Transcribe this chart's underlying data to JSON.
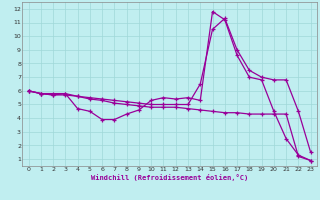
{
  "xlabel": "Windchill (Refroidissement éolien,°C)",
  "xlim": [
    -0.5,
    23.5
  ],
  "ylim": [
    0.5,
    12.5
  ],
  "xticks": [
    0,
    1,
    2,
    3,
    4,
    5,
    6,
    7,
    8,
    9,
    10,
    11,
    12,
    13,
    14,
    15,
    16,
    17,
    18,
    19,
    20,
    21,
    22,
    23
  ],
  "yticks": [
    1,
    2,
    3,
    4,
    5,
    6,
    7,
    8,
    9,
    10,
    11,
    12
  ],
  "bg_color": "#c0eef0",
  "grid_color": "#a0d8d8",
  "line_color": "#990099",
  "line1_x": [
    0,
    1,
    2,
    3,
    4,
    5,
    6,
    7,
    8,
    9,
    10,
    11,
    12,
    13,
    14,
    15,
    16,
    17,
    18,
    19,
    20,
    21,
    22,
    23
  ],
  "line1_y": [
    6.0,
    5.8,
    5.7,
    5.8,
    4.7,
    4.5,
    3.9,
    3.9,
    4.3,
    4.6,
    5.3,
    5.5,
    5.4,
    5.5,
    5.3,
    11.8,
    11.2,
    8.6,
    7.0,
    6.8,
    4.5,
    2.5,
    1.3,
    0.9
  ],
  "line2_x": [
    0,
    1,
    2,
    3,
    4,
    5,
    6,
    7,
    8,
    9,
    10,
    11,
    12,
    13,
    14,
    15,
    16,
    17,
    18,
    19,
    20,
    21,
    22,
    23
  ],
  "line2_y": [
    6.0,
    5.8,
    5.8,
    5.8,
    5.6,
    5.5,
    5.4,
    5.3,
    5.2,
    5.1,
    5.0,
    5.0,
    5.0,
    5.0,
    6.5,
    10.5,
    11.3,
    9.0,
    7.5,
    7.0,
    6.8,
    6.8,
    4.5,
    1.5
  ],
  "line3_x": [
    0,
    1,
    2,
    3,
    4,
    5,
    6,
    7,
    8,
    9,
    10,
    11,
    12,
    13,
    14,
    15,
    16,
    17,
    18,
    19,
    20,
    21,
    22,
    23
  ],
  "line3_y": [
    6.0,
    5.8,
    5.7,
    5.7,
    5.6,
    5.4,
    5.3,
    5.1,
    5.0,
    4.9,
    4.8,
    4.8,
    4.8,
    4.7,
    4.6,
    4.5,
    4.4,
    4.4,
    4.3,
    4.3,
    4.3,
    4.3,
    1.2,
    0.9
  ]
}
